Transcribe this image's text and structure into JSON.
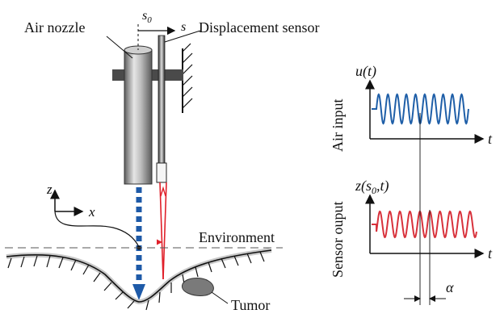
{
  "labels": {
    "air_nozzle": "Air nozzle",
    "displacement_sensor": "Displacement sensor",
    "s0": "s",
    "s0_sub": "0",
    "s": "s",
    "environment": "Environment",
    "tumor": "Tumor",
    "axis_z": "z",
    "axis_x": "x"
  },
  "top_plot": {
    "ylabel_symbol": "u(t)",
    "side_label": "Air input",
    "t_label": "t",
    "color": "#1f5fa8",
    "cycles": 10
  },
  "bottom_plot": {
    "ylabel_symbol_pre": "z(s",
    "ylabel_symbol_sub": "0",
    "ylabel_symbol_post": ",t)",
    "side_label": "Sensor ouput",
    "t_label": "t",
    "color": "#d8323c",
    "cycles": 10
  },
  "phase_label": "α",
  "colors": {
    "nozzle_light": "#d9d9d9",
    "nozzle_dark": "#6a6a6a",
    "jet": "#1e5aa8",
    "laser": "#e0202a",
    "tumor": "#7a7a7a"
  }
}
